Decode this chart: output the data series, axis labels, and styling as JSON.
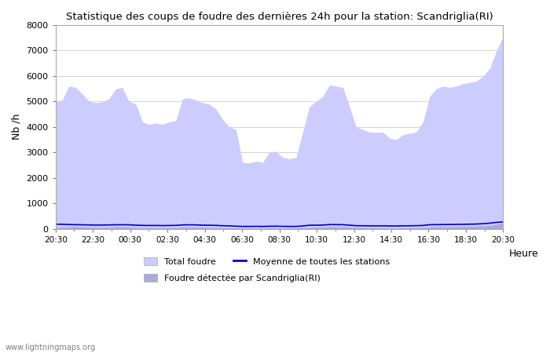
{
  "title": "Statistique des coups de foudre des dernières 24h pour la station: Scandriglia(RI)",
  "xlabel": "Heure",
  "ylabel": "Nb /h",
  "ylim": [
    0,
    8000
  ],
  "yticks": [
    0,
    1000,
    2000,
    3000,
    4000,
    5000,
    6000,
    7000,
    8000
  ],
  "xtick_labels": [
    "20:30",
    "22:30",
    "00:30",
    "02:30",
    "04:30",
    "06:30",
    "08:30",
    "10:30",
    "12:30",
    "14:30",
    "16:30",
    "18:30",
    "20:30"
  ],
  "watermark": "www.lightningmaps.org",
  "legend_total": "Total foudre",
  "legend_moyenne": "Moyenne de toutes les stations",
  "legend_detected": "Foudre détectée par Scandriglia(RI)",
  "color_fill": "#ccccff",
  "color_detected_fill": "#aaaadd",
  "color_moyenne": "#0000cc",
  "total_foudre": [
    5000,
    5050,
    5600,
    5550,
    5300,
    5000,
    4950,
    4980,
    5100,
    5500,
    5550,
    5000,
    4900,
    4200,
    4100,
    4150,
    4100,
    4200,
    4250,
    5100,
    5150,
    5050,
    4950,
    4900,
    4700,
    4300,
    4000,
    3900,
    2600,
    2580,
    2650,
    2600,
    3000,
    3050,
    2800,
    2750,
    2800,
    3800,
    4800,
    5000,
    5200,
    5650,
    5600,
    5550,
    4800,
    4000,
    3900,
    3800,
    3780,
    3800,
    3550,
    3500,
    3700,
    3750,
    3800,
    4200,
    5200,
    5500,
    5600,
    5550,
    5600,
    5700,
    5750,
    5800,
    6000,
    6300,
    7000,
    7550
  ],
  "detected_foudre": [
    50,
    60,
    70,
    80,
    70,
    60,
    55,
    50,
    60,
    70,
    75,
    60,
    50,
    40,
    35,
    40,
    38,
    40,
    45,
    60,
    65,
    60,
    55,
    50,
    45,
    40,
    35,
    30,
    25,
    20,
    22,
    20,
    25,
    30,
    28,
    25,
    28,
    35,
    50,
    60,
    65,
    80,
    75,
    70,
    60,
    45,
    40,
    38,
    35,
    40,
    30,
    28,
    35,
    38,
    40,
    50,
    65,
    80,
    85,
    80,
    85,
    90,
    95,
    100,
    110,
    130,
    180,
    220
  ],
  "moyenne": [
    180,
    175,
    165,
    160,
    155,
    150,
    145,
    145,
    150,
    155,
    158,
    155,
    140,
    132,
    128,
    130,
    125,
    128,
    132,
    150,
    155,
    152,
    140,
    138,
    132,
    120,
    115,
    100,
    92,
    90,
    95,
    90,
    98,
    100,
    95,
    90,
    92,
    110,
    138,
    140,
    145,
    165,
    162,
    160,
    140,
    122,
    118,
    115,
    113,
    115,
    110,
    108,
    115,
    118,
    122,
    130,
    158,
    162,
    165,
    168,
    170,
    175,
    180,
    185,
    200,
    220,
    250,
    270
  ]
}
